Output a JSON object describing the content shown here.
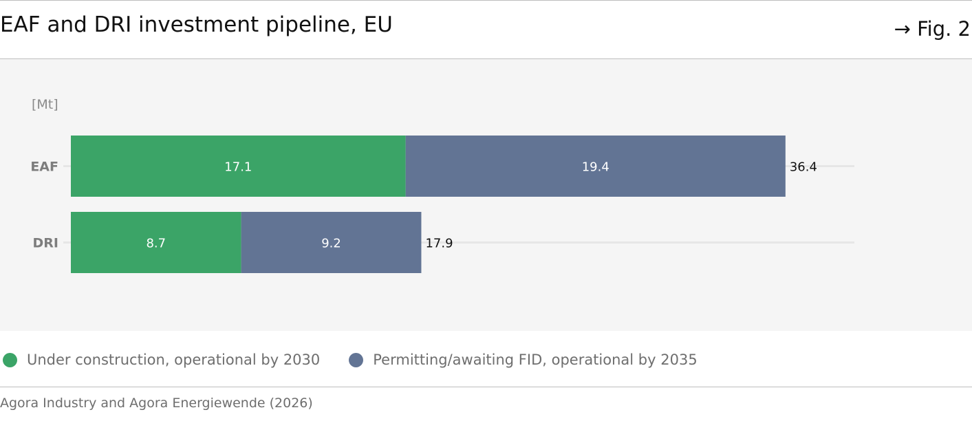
{
  "header": {
    "title": "EAF and DRI investment pipeline, EU",
    "figure_label": "→ Fig. 2"
  },
  "colors": {
    "under_construction": "#3ba467",
    "permitting": "#627494",
    "background": "#f5f5f5"
  },
  "chart_data": {
    "type": "bar",
    "orientation": "horizontal",
    "stacked": true,
    "unit_label": "[Mt]",
    "categories": [
      "EAF",
      "DRI"
    ],
    "series": [
      {
        "name": "Under construction, operational by 2030",
        "values": [
          17.1,
          8.7
        ]
      },
      {
        "name": "Permitting/awaiting FID, operational by 2035",
        "values": [
          19.4,
          9.2
        ]
      }
    ],
    "totals": [
      "36.4",
      "17.9"
    ],
    "xlim": [
      0,
      36.4
    ],
    "grid": false,
    "legend": "bottom-left"
  },
  "legend": {
    "items": [
      {
        "label": "Under construction, operational by 2030"
      },
      {
        "label": "Permitting/awaiting FID, operational by 2035"
      }
    ]
  },
  "footer": {
    "source": "Agora Industry and Agora Energiewende (2026)"
  }
}
